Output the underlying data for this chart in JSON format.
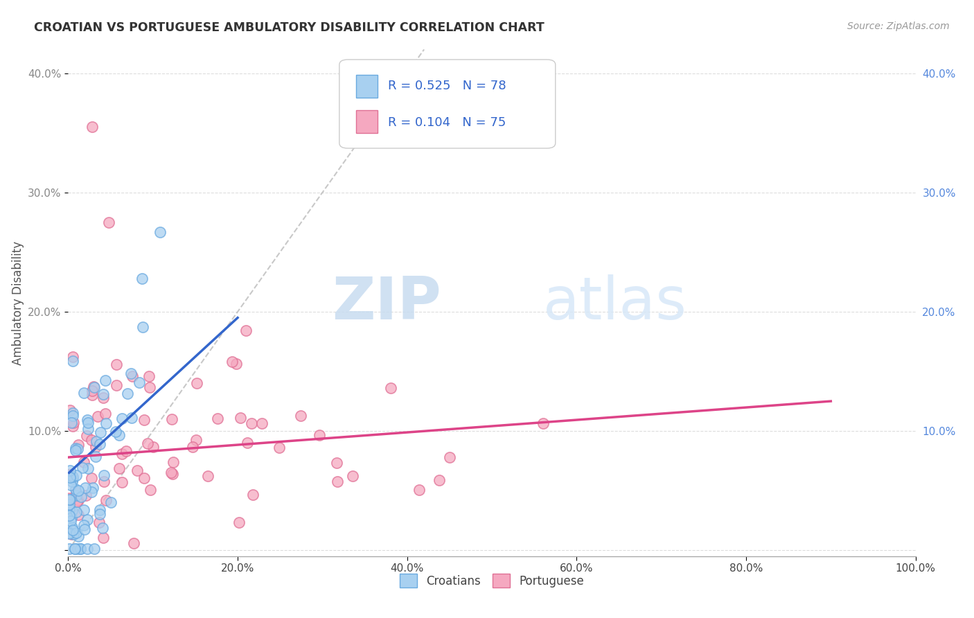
{
  "title": "CROATIAN VS PORTUGUESE AMBULATORY DISABILITY CORRELATION CHART",
  "source": "Source: ZipAtlas.com",
  "ylabel": "Ambulatory Disability",
  "xlim": [
    0.0,
    1.0
  ],
  "ylim": [
    -0.005,
    0.42
  ],
  "xticks": [
    0.0,
    0.2,
    0.4,
    0.6,
    0.8,
    1.0
  ],
  "yticks": [
    0.0,
    0.1,
    0.2,
    0.3,
    0.4
  ],
  "xtick_labels": [
    "0.0%",
    "20.0%",
    "40.0%",
    "60.0%",
    "80.0%",
    "100.0%"
  ],
  "ytick_labels_left": [
    "",
    "10.0%",
    "20.0%",
    "30.0%",
    "40.0%"
  ],
  "ytick_labels_right": [
    "",
    "10.0%",
    "20.0%",
    "30.0%",
    "40.0%"
  ],
  "croatian_color": "#A8D0F0",
  "croatian_edge": "#6AAAE0",
  "portuguese_color": "#F5A8C0",
  "portuguese_edge": "#E07095",
  "trend_croatian_color": "#3366CC",
  "trend_portuguese_color": "#DD4488",
  "diagonal_color": "#BBBBBB",
  "R_croatian": 0.525,
  "N_croatian": 78,
  "R_portuguese": 0.104,
  "N_portuguese": 75,
  "legend_label_croatian": "Croatians",
  "legend_label_portuguese": "Portuguese",
  "watermark_zip": "ZIP",
  "watermark_atlas": "atlas",
  "background_color": "#FFFFFF",
  "seed_croatian": 42,
  "seed_portuguese": 99,
  "trend_hr_x0": 0.001,
  "trend_hr_x1": 0.2,
  "trend_hr_y0": 0.065,
  "trend_hr_y1": 0.195,
  "trend_pt_x0": 0.001,
  "trend_pt_x1": 0.9,
  "trend_pt_y0": 0.078,
  "trend_pt_y1": 0.125
}
